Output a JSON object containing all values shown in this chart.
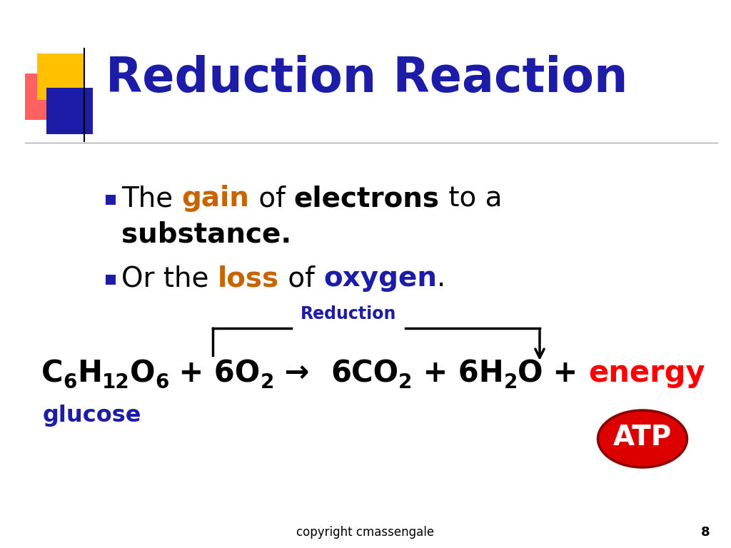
{
  "title": "Reduction Reaction",
  "title_color": "#1c1ca8",
  "title_fontsize": 48,
  "background_color": "#ffffff",
  "bullet_square_color": "#1c1ca8",
  "bullet1_parts": [
    {
      "text": "The ",
      "color": "#000000",
      "bold": false
    },
    {
      "text": "gain",
      "color": "#c86400",
      "bold": true
    },
    {
      "text": " of ",
      "color": "#000000",
      "bold": false
    },
    {
      "text": "electrons",
      "color": "#000000",
      "bold": true
    },
    {
      "text": " to a",
      "color": "#000000",
      "bold": false
    }
  ],
  "bullet1_line2": "substance.",
  "bullet2_parts": [
    {
      "text": "Or the ",
      "color": "#000000",
      "bold": false
    },
    {
      "text": "loss",
      "color": "#c86400",
      "bold": true
    },
    {
      "text": " of ",
      "color": "#000000",
      "bold": false
    },
    {
      "text": "oxygen",
      "color": "#1c1ca8",
      "bold": true
    },
    {
      "text": ".",
      "color": "#000000",
      "bold": false
    }
  ],
  "reduction_label": "Reduction",
  "reduction_label_color": "#1c1ca8",
  "energy_color": "#ff0000",
  "glucose_color": "#1c1ca8",
  "atp_bg": "#dd0000",
  "atp_text_color": "#ffffff",
  "copyright": "copyright cmassengale",
  "page_number": "8",
  "footer_color": "#000000",
  "deco_yellow": "#ffc000",
  "deco_red": "#ff4444",
  "deco_blue": "#1c1ca8",
  "line_color": "#aaaaaa",
  "bullet_fontsize": 28,
  "eq_fontsize": 30,
  "eq_sub_fontsize": 20
}
